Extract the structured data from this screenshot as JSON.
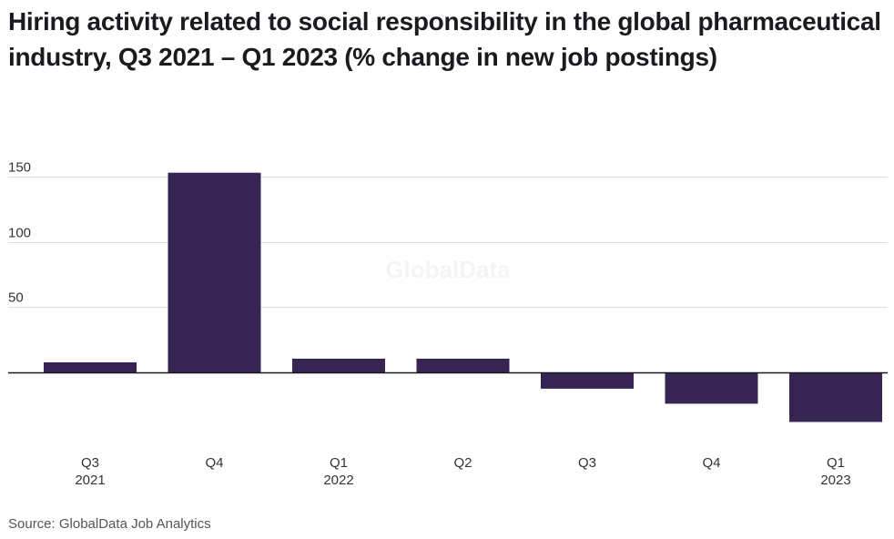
{
  "title": "Hiring activity related to social responsibility in the global pharmaceutical industry, Q3 2021 – Q1 2023 (% change in new job postings)",
  "source": "Source: GlobalData Job Analytics",
  "watermark": "GlobalData",
  "colors": {
    "bar": "#362552",
    "grid": "#dddddd",
    "zero_line": "#1a1a1a"
  },
  "chart_data": {
    "type": "bar",
    "title": "Hiring activity related to social responsibility in the global pharmaceutical industry, Q3 2021 – Q1 2023 (% change in new job postings)",
    "xlabel": "",
    "ylabel": "",
    "categories": [
      {
        "quarter": "Q3",
        "year": "2021"
      },
      {
        "quarter": "Q4",
        "year": ""
      },
      {
        "quarter": "Q1",
        "year": "2022"
      },
      {
        "quarter": "Q2",
        "year": ""
      },
      {
        "quarter": "Q3",
        "year": ""
      },
      {
        "quarter": "Q4",
        "year": ""
      },
      {
        "quarter": "Q1",
        "year": "2023"
      }
    ],
    "category_labels": [
      "Q3 2021",
      "Q4 2021",
      "Q1 2022",
      "Q2 2022",
      "Q3 2022",
      "Q4 2022",
      "Q1 2023"
    ],
    "values": [
      7.7,
      153,
      10.5,
      10.5,
      -12.5,
      -24,
      -38
    ],
    "ylim": [
      -50,
      160
    ],
    "yticks": [
      50,
      100,
      150
    ],
    "ytick_labels": [
      "50",
      "100",
      "150"
    ],
    "grid": true,
    "legend": "none"
  }
}
